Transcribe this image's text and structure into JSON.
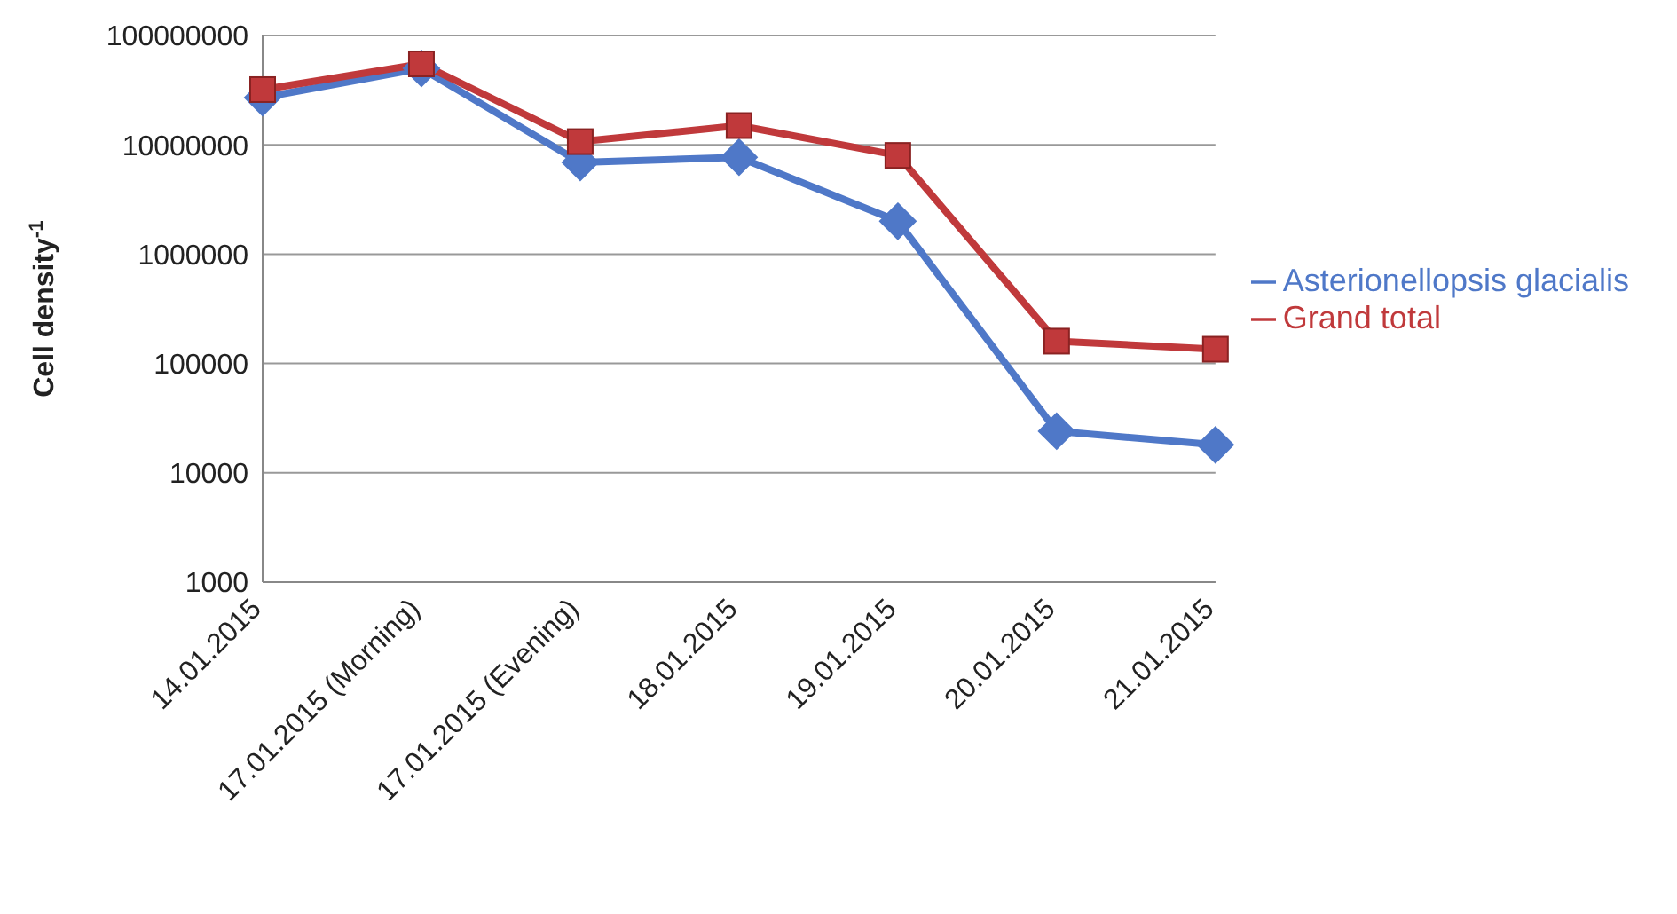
{
  "chart_data": {
    "type": "line",
    "ylabel": "Cell density$^{-1}$",
    "categories": [
      "14.01.2015",
      "17.01.2015 (Morning)",
      "17.01.2015 (Evening)",
      "18.01.2015",
      "19.01.2015",
      "20.01.2015",
      "21.01.2015"
    ],
    "series": [
      {
        "name": "Asterionellopsis glacialis",
        "color": "#4f78c8",
        "marker": "diamond",
        "values": [
          27000000,
          50000000,
          6900000,
          7700000,
          2000000,
          24000,
          18000
        ]
      },
      {
        "name": "Grand total",
        "color": "#c0393b",
        "marker": "square",
        "values": [
          32000000,
          55000000,
          10700000,
          15000000,
          8000000,
          160000,
          135000
        ]
      }
    ],
    "log": "y",
    "ylim": [
      1000,
      100000000
    ],
    "yticks": [
      1000,
      10000,
      100000,
      1000000,
      10000000,
      100000000
    ],
    "grid": "y",
    "legend": "right",
    "line_style": "solid"
  }
}
